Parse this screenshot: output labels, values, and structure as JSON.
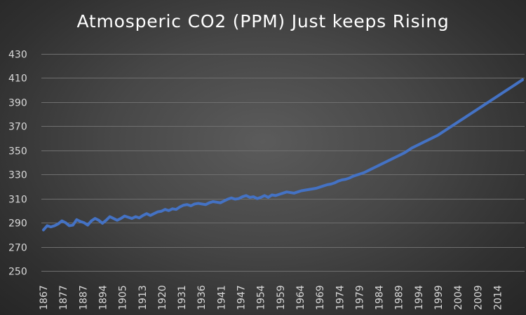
{
  "chart_data": {
    "type": "line",
    "title": "Atmosperic CO2 (PPM) Just keeps Rising",
    "xlabel": "",
    "ylabel": "",
    "ylim": [
      250,
      430
    ],
    "y_ticks": [
      250,
      270,
      290,
      310,
      330,
      350,
      370,
      390,
      410,
      430
    ],
    "x_tick_labels": [
      "1867",
      "1877",
      "1887",
      "1894",
      "1905",
      "1913",
      "1920",
      "1931",
      "1936",
      "1941",
      "1947",
      "1954",
      "1959",
      "1964",
      "1969",
      "1974",
      "1979",
      "1984",
      "1989",
      "1994",
      "1999",
      "2004",
      "2009",
      "2014"
    ],
    "grid": "horizontal",
    "series_color": "#4472c4",
    "series": [
      {
        "values": [
          284,
          287.5,
          286.5,
          287.5,
          289,
          291.5,
          290,
          287.5,
          288,
          292.5,
          291,
          290,
          288,
          291.5,
          293.5,
          292,
          289.5,
          292,
          295,
          293.5,
          292,
          293.5,
          295.5,
          294.5,
          293.5,
          295,
          294,
          296,
          297.5,
          296,
          297.5,
          299,
          299.5,
          301,
          300,
          301.5,
          301,
          303,
          304.5,
          305,
          304,
          305.5,
          306,
          305.5,
          305,
          306.5,
          307.5,
          307,
          306.5,
          308,
          309.5,
          310.5,
          309.5,
          310,
          311.5,
          312.5,
          311,
          311.5,
          310,
          311,
          312.5,
          311,
          313,
          312.5,
          313.5,
          314.5,
          315.5,
          315,
          314.5,
          315.5,
          316.5,
          317,
          317.5,
          318,
          318.5,
          319.5,
          320.5,
          321.5,
          322,
          323,
          324.5,
          325.5,
          326,
          327,
          328.5,
          329.5,
          330.5,
          331.5,
          333,
          334.5,
          336,
          337.5,
          339,
          340.5,
          342,
          343.5,
          345,
          346.5,
          348,
          350,
          352,
          353.5,
          355,
          356.5,
          358,
          359.5,
          361,
          362.5,
          364.5,
          366.5,
          368.5,
          370.5,
          372.5,
          374.5,
          376.5,
          378.5,
          380.5,
          382.5,
          384.5,
          386.5,
          388.5,
          390.5,
          392.5,
          394.5,
          396.5,
          398.5,
          400.5,
          402.5,
          404.5,
          406.5,
          408.5
        ]
      }
    ]
  }
}
